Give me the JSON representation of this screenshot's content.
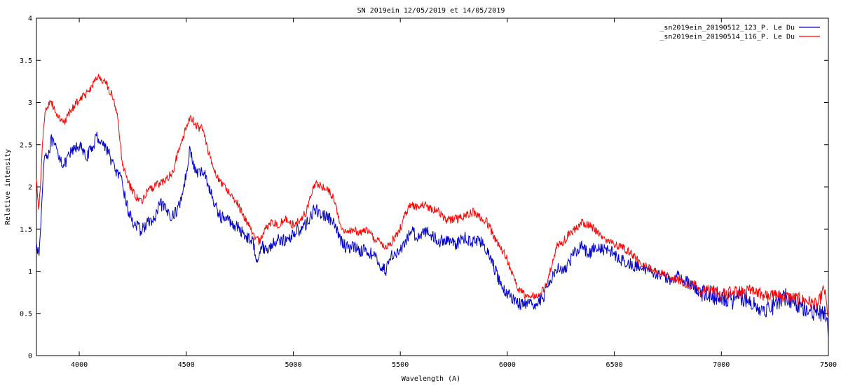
{
  "chart_data": {
    "type": "line",
    "title": "SN 2019ein 12/05/2019  et 14/05/2019",
    "xlabel": "Wavelength (A)",
    "ylabel": "Relative intensity",
    "xlim": [
      3800,
      7500
    ],
    "ylim": [
      0,
      4
    ],
    "xticks": [
      4000,
      4500,
      5000,
      5500,
      6000,
      6500,
      7000,
      7500
    ],
    "yticks": [
      0,
      0.5,
      1,
      1.5,
      2,
      2.5,
      3,
      3.5,
      4
    ],
    "ytick_labels": [
      "0",
      "0.5",
      "1",
      "1.5",
      "2",
      "2.5",
      "3",
      "3.5",
      "4"
    ],
    "grid": false,
    "legend_position": "top-right",
    "series": [
      {
        "name": "_sn2019ein_20190512_123_P. Le Du",
        "color": "#0000cc",
        "x": [
          3800,
          3810,
          3820,
          3830,
          3840,
          3850,
          3870,
          3900,
          3930,
          3960,
          4000,
          4030,
          4060,
          4080,
          4100,
          4130,
          4160,
          4200,
          4230,
          4260,
          4290,
          4320,
          4350,
          4380,
          4410,
          4440,
          4470,
          4500,
          4515,
          4540,
          4560,
          4580,
          4600,
          4630,
          4660,
          4700,
          4740,
          4780,
          4810,
          4830,
          4850,
          4880,
          4910,
          4940,
          4970,
          5000,
          5030,
          5060,
          5090,
          5110,
          5130,
          5160,
          5190,
          5220,
          5250,
          5280,
          5310,
          5340,
          5370,
          5400,
          5430,
          5460,
          5490,
          5520,
          5550,
          5580,
          5610,
          5640,
          5680,
          5720,
          5760,
          5800,
          5840,
          5870,
          5900,
          5930,
          5960,
          5990,
          6020,
          6050,
          6080,
          6110,
          6140,
          6170,
          6200,
          6230,
          6260,
          6290,
          6320,
          6350,
          6380,
          6410,
          6440,
          6480,
          6520,
          6560,
          6600,
          6650,
          6700,
          6750,
          6800,
          6850,
          6880,
          6900,
          6950,
          7000,
          7050,
          7100,
          7150,
          7200,
          7250,
          7300,
          7350,
          7400,
          7450,
          7480,
          7500
        ],
        "values": [
          1.4,
          1.15,
          1.5,
          2.1,
          2.45,
          2.35,
          2.55,
          2.4,
          2.25,
          2.4,
          2.5,
          2.35,
          2.45,
          2.6,
          2.55,
          2.45,
          2.25,
          2.05,
          1.7,
          1.55,
          1.48,
          1.58,
          1.6,
          1.8,
          1.7,
          1.65,
          1.8,
          2.15,
          2.45,
          2.2,
          2.15,
          2.2,
          2.05,
          1.8,
          1.65,
          1.6,
          1.52,
          1.42,
          1.35,
          1.15,
          1.3,
          1.25,
          1.35,
          1.38,
          1.35,
          1.45,
          1.5,
          1.55,
          1.7,
          1.72,
          1.68,
          1.65,
          1.55,
          1.38,
          1.28,
          1.3,
          1.25,
          1.25,
          1.2,
          1.1,
          1.0,
          1.2,
          1.22,
          1.3,
          1.5,
          1.4,
          1.48,
          1.45,
          1.35,
          1.38,
          1.32,
          1.4,
          1.35,
          1.38,
          1.25,
          1.1,
          0.9,
          0.75,
          0.7,
          0.62,
          0.6,
          0.6,
          0.62,
          0.7,
          0.9,
          1.05,
          1.0,
          1.1,
          1.25,
          1.3,
          1.2,
          1.3,
          1.25,
          1.25,
          1.15,
          1.1,
          1.05,
          1.02,
          0.98,
          0.9,
          0.95,
          0.85,
          0.8,
          0.75,
          0.72,
          0.7,
          0.65,
          0.7,
          0.6,
          0.55,
          0.6,
          0.7,
          0.62,
          0.55,
          0.5,
          0.5,
          0.3
        ]
      },
      {
        "name": "_sn2019ein_20190514_116_P. Le Du",
        "color": "#ff0000",
        "x": [
          3800,
          3810,
          3820,
          3830,
          3840,
          3850,
          3870,
          3900,
          3930,
          3960,
          4000,
          4030,
          4060,
          4080,
          4100,
          4130,
          4160,
          4180,
          4200,
          4230,
          4260,
          4290,
          4320,
          4350,
          4380,
          4410,
          4440,
          4470,
          4500,
          4520,
          4540,
          4560,
          4580,
          4600,
          4630,
          4660,
          4700,
          4740,
          4780,
          4810,
          4840,
          4870,
          4900,
          4930,
          4960,
          5000,
          5030,
          5060,
          5090,
          5110,
          5130,
          5160,
          5190,
          5220,
          5250,
          5280,
          5310,
          5340,
          5370,
          5400,
          5430,
          5460,
          5490,
          5520,
          5550,
          5580,
          5610,
          5640,
          5680,
          5720,
          5760,
          5800,
          5840,
          5870,
          5900,
          5930,
          5960,
          5990,
          6020,
          6050,
          6080,
          6110,
          6140,
          6170,
          6200,
          6230,
          6260,
          6290,
          6320,
          6350,
          6380,
          6410,
          6440,
          6480,
          6520,
          6560,
          6600,
          6650,
          6700,
          6750,
          6800,
          6850,
          6880,
          6900,
          6950,
          7000,
          7050,
          7100,
          7150,
          7200,
          7250,
          7300,
          7350,
          7400,
          7450,
          7480,
          7500
        ],
        "values": [
          2.1,
          1.7,
          2.1,
          2.6,
          2.9,
          2.95,
          3.0,
          2.85,
          2.75,
          2.9,
          3.05,
          3.1,
          3.2,
          3.3,
          3.28,
          3.2,
          3.05,
          2.8,
          2.3,
          2.05,
          1.9,
          1.82,
          1.95,
          2.0,
          2.05,
          2.1,
          2.2,
          2.5,
          2.7,
          2.85,
          2.75,
          2.7,
          2.7,
          2.45,
          2.2,
          2.05,
          1.95,
          1.8,
          1.6,
          1.45,
          1.35,
          1.5,
          1.6,
          1.55,
          1.62,
          1.55,
          1.6,
          1.7,
          1.95,
          2.05,
          2.0,
          1.98,
          1.85,
          1.55,
          1.45,
          1.5,
          1.45,
          1.5,
          1.4,
          1.35,
          1.28,
          1.35,
          1.45,
          1.65,
          1.8,
          1.75,
          1.8,
          1.75,
          1.7,
          1.6,
          1.62,
          1.65,
          1.7,
          1.65,
          1.6,
          1.45,
          1.3,
          1.2,
          1.0,
          0.8,
          0.72,
          0.7,
          0.7,
          0.78,
          1.0,
          1.3,
          1.35,
          1.45,
          1.5,
          1.58,
          1.55,
          1.5,
          1.4,
          1.35,
          1.3,
          1.25,
          1.15,
          1.05,
          1.0,
          0.95,
          0.9,
          0.82,
          0.85,
          0.75,
          0.78,
          0.72,
          0.75,
          0.75,
          0.8,
          0.7,
          0.72,
          0.7,
          0.68,
          0.65,
          0.6,
          0.8,
          0.45
        ]
      }
    ]
  }
}
